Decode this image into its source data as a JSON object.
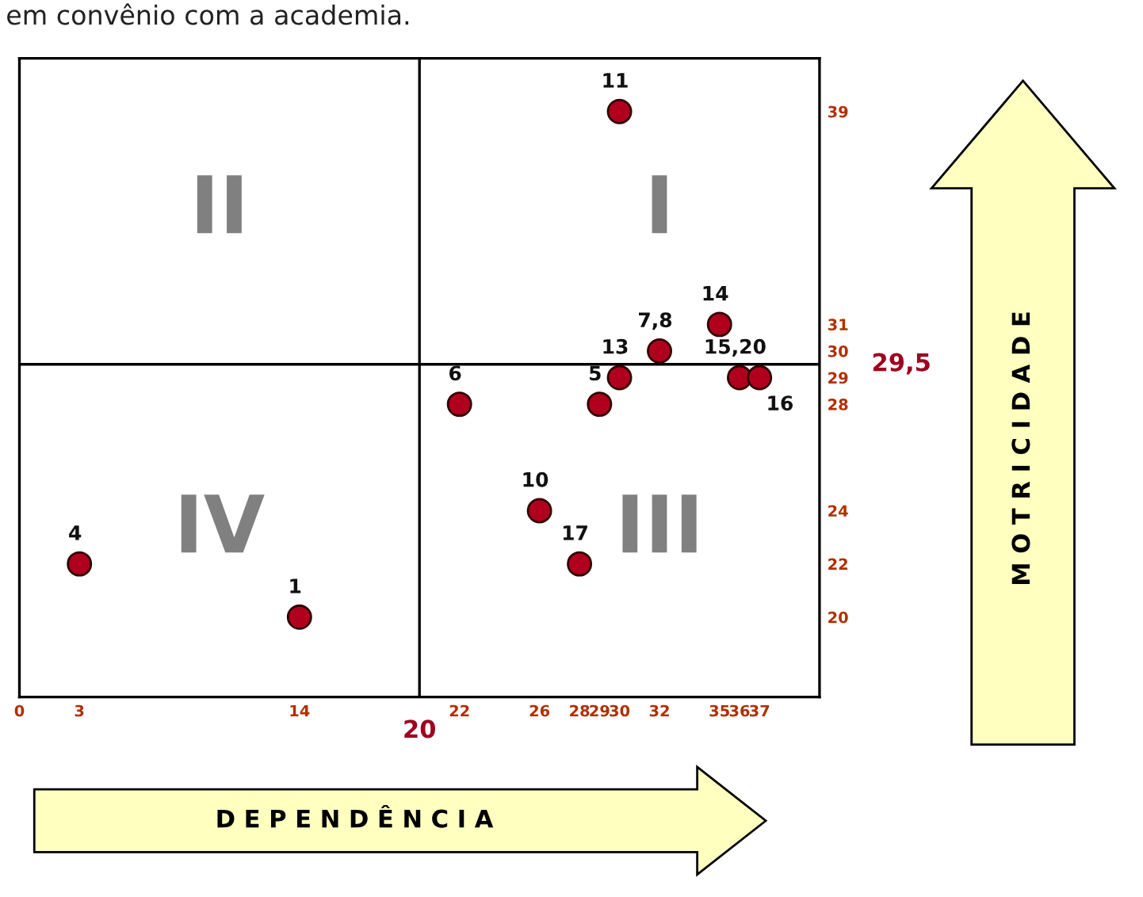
{
  "chart_data": {
    "type": "scatter",
    "xlabel": "D E P E N D Ê N C I A",
    "x": [
      30,
      35,
      32,
      30,
      36,
      37,
      22,
      29,
      26,
      28,
      3,
      14
    ],
    "series": [
      {
        "color": "#b0001e",
        "values": [
          39,
          31,
          30,
          29,
          29,
          29,
          28,
          28,
          24,
          22,
          22,
          20
        ]
      }
    ],
    "marker": "circle",
    "xlim": [
      0,
      40
    ],
    "ylim": [
      17,
      41
    ],
    "xticks": [
      0,
      3,
      14,
      22,
      26,
      28,
      29,
      30,
      32,
      35,
      36,
      37
    ],
    "yticks": [
      20,
      22,
      24,
      28,
      29,
      30,
      31,
      39
    ],
    "ref_lines": [
      {
        "axis": "x",
        "value": 20,
        "label": "20",
        "color": "#000000"
      },
      {
        "axis": "y",
        "value": 29.5,
        "label": "29,5",
        "color": "#000000"
      }
    ],
    "annotations": [
      "em convênio com a academia.",
      "II",
      "I",
      "IV",
      "III",
      "M O T R I C I D A D E",
      {
        "text": "11",
        "x": 30,
        "y": 39
      },
      {
        "text": "14",
        "x": 35,
        "y": 31
      },
      {
        "text": "7,8",
        "x": 32,
        "y": 30
      },
      {
        "text": "13",
        "x": 30,
        "y": 29
      },
      {
        "text": "15,20",
        "x": 36,
        "y": 29
      },
      {
        "text": "16",
        "x": 37,
        "y": 29
      },
      {
        "text": "6",
        "x": 22,
        "y": 28
      },
      {
        "text": "5",
        "x": 29,
        "y": 28
      },
      {
        "text": "10",
        "x": 26,
        "y": 24
      },
      {
        "text": "17",
        "x": 28,
        "y": 22
      },
      {
        "text": "4",
        "x": 3,
        "y": 22
      },
      {
        "text": "1",
        "x": 14,
        "y": 20
      }
    ],
    "grid": false
  }
}
